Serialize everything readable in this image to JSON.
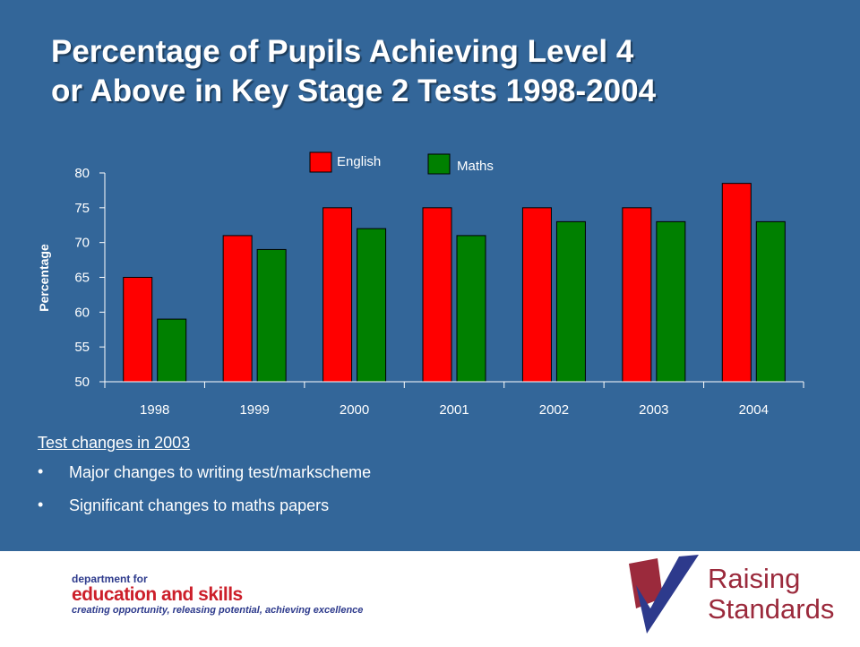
{
  "slide": {
    "title_line1": "Percentage of Pupils Achieving Level 4",
    "title_line2": "or Above in Key Stage 2 Tests 1998-2004",
    "background_color": "#336699"
  },
  "chart_data": {
    "type": "bar",
    "title": "",
    "xlabel": "",
    "ylabel": "Percentage",
    "ylim": [
      50,
      80
    ],
    "yticks": [
      50,
      55,
      60,
      65,
      70,
      75,
      80
    ],
    "categories": [
      "1998",
      "1999",
      "2000",
      "2001",
      "2002",
      "2003",
      "2004"
    ],
    "series": [
      {
        "name": "English",
        "color": "#ff0000",
        "values": [
          65,
          71,
          75,
          75,
          75,
          75,
          78.5
        ]
      },
      {
        "name": "Maths",
        "color": "#008000",
        "values": [
          59,
          69,
          72,
          71,
          73,
          73,
          73
        ]
      }
    ],
    "legend_position": "top-center",
    "grid": false
  },
  "notes": {
    "heading": "Test changes in 2003",
    "bullet_char": "•",
    "items": [
      "Major changes to writing test/markscheme",
      "Significant changes to maths papers"
    ]
  },
  "footer": {
    "dfes_line1": "department for",
    "dfes_line2": "education and skills",
    "dfes_tagline": "creating opportunity, releasing potential, achieving excellence",
    "rs_line1": "Raising",
    "rs_line2": "Standards"
  }
}
